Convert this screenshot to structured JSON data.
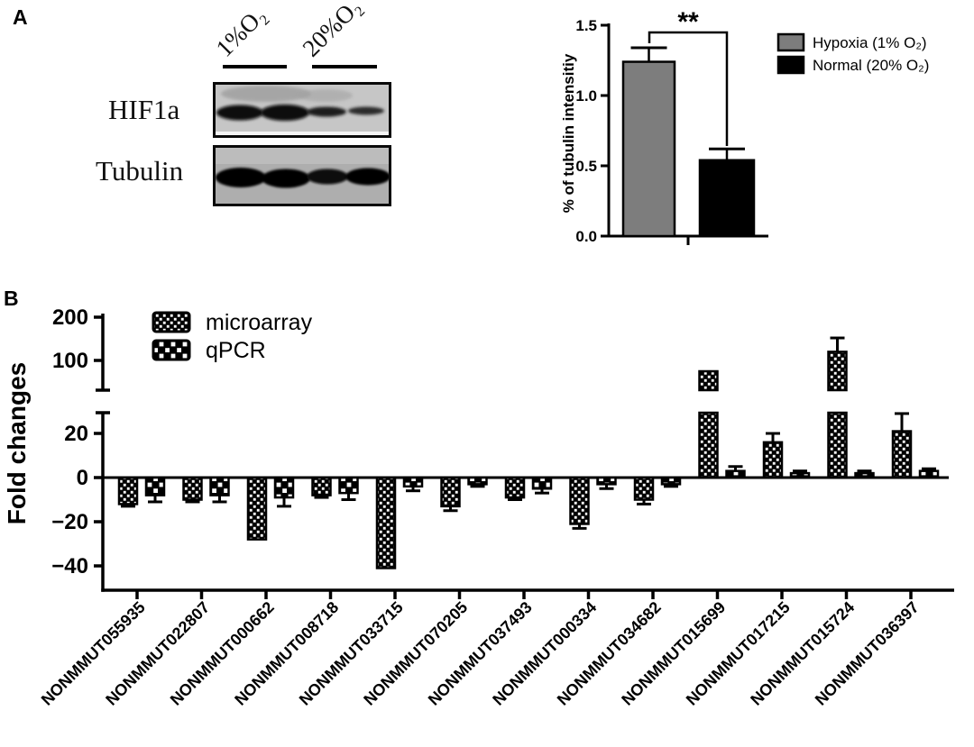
{
  "figure": {
    "panel_a_label": "A",
    "panel_b_label": "B"
  },
  "western_blot": {
    "condition_labels": [
      "1%O₂",
      "20%O₂"
    ],
    "row_labels": [
      "HIF1a",
      "Tubulin"
    ],
    "lanes_per_condition": 2
  },
  "chart_data": [
    {
      "id": "tubulin-intensity",
      "type": "bar",
      "ylabel": "% of tubulin intensitiy",
      "ylim": [
        0,
        1.5
      ],
      "yticks": [
        {
          "label": "0.0",
          "value": 0
        },
        {
          "label": "0.5",
          "value": 0.5
        },
        {
          "label": "1.0",
          "value": 1.0
        },
        {
          "label": "1.5",
          "value": 1.5
        }
      ],
      "categories": [
        "Hypoxia (1% O₂)",
        "Normal (20% O₂)"
      ],
      "values": [
        1.24,
        0.54
      ],
      "errors": [
        0.1,
        0.08
      ],
      "bar_colors": [
        "#7d7d7d",
        "#000000"
      ],
      "significance": "**",
      "legend": [
        {
          "label": "Hypoxia (1% O₂)",
          "color": "#7d7d7d"
        },
        {
          "label": "Normal (20% O₂)",
          "color": "#000000"
        }
      ],
      "legend_position": "right",
      "grid": false
    },
    {
      "id": "fold-changes",
      "type": "bar",
      "ylabel": "Fold changes",
      "axis_break": true,
      "lower_ticks": [
        {
          "label": "−40",
          "value": -40
        },
        {
          "label": "−20",
          "value": -20
        },
        {
          "label": "0",
          "value": 0
        },
        {
          "label": "20",
          "value": 20
        }
      ],
      "upper_ticks": [
        {
          "label": "100",
          "value": 100
        },
        {
          "label": "200",
          "value": 200
        }
      ],
      "ylim_lower": [
        -51,
        30
      ],
      "ylim_upper": [
        23,
        215
      ],
      "categories": [
        "NONMMUT055935",
        "NONMMUT022807",
        "NONMMUT000662",
        "NONMMUT008718",
        "NONMMUT033715",
        "NONMMUT070205",
        "NONMMUT037493",
        "NONMMUT000334",
        "NONMMUT034682",
        "NONMMUT015699",
        "NONMMUT017215",
        "NONMMUT015724",
        "NONMMUT036397"
      ],
      "series": [
        {
          "name": "microarray",
          "pattern": "fine-checker",
          "values": [
            -12,
            -10,
            -28,
            -8,
            -41,
            -13,
            -9,
            -21,
            -10,
            75,
            16,
            120,
            21
          ],
          "errors": [
            1,
            1,
            0,
            1,
            0,
            2,
            1,
            2,
            2,
            0,
            4,
            32,
            8
          ]
        },
        {
          "name": "qPCR",
          "pattern": "coarse-checker",
          "values": [
            -8,
            -8,
            -9,
            -7,
            -4,
            -3,
            -5,
            -3,
            -3,
            3,
            2,
            2,
            3
          ],
          "errors": [
            3,
            3,
            4,
            3,
            2,
            1,
            2,
            2,
            1,
            2,
            1,
            1,
            1
          ]
        }
      ],
      "legend_position": "top-left",
      "grid": false
    }
  ]
}
